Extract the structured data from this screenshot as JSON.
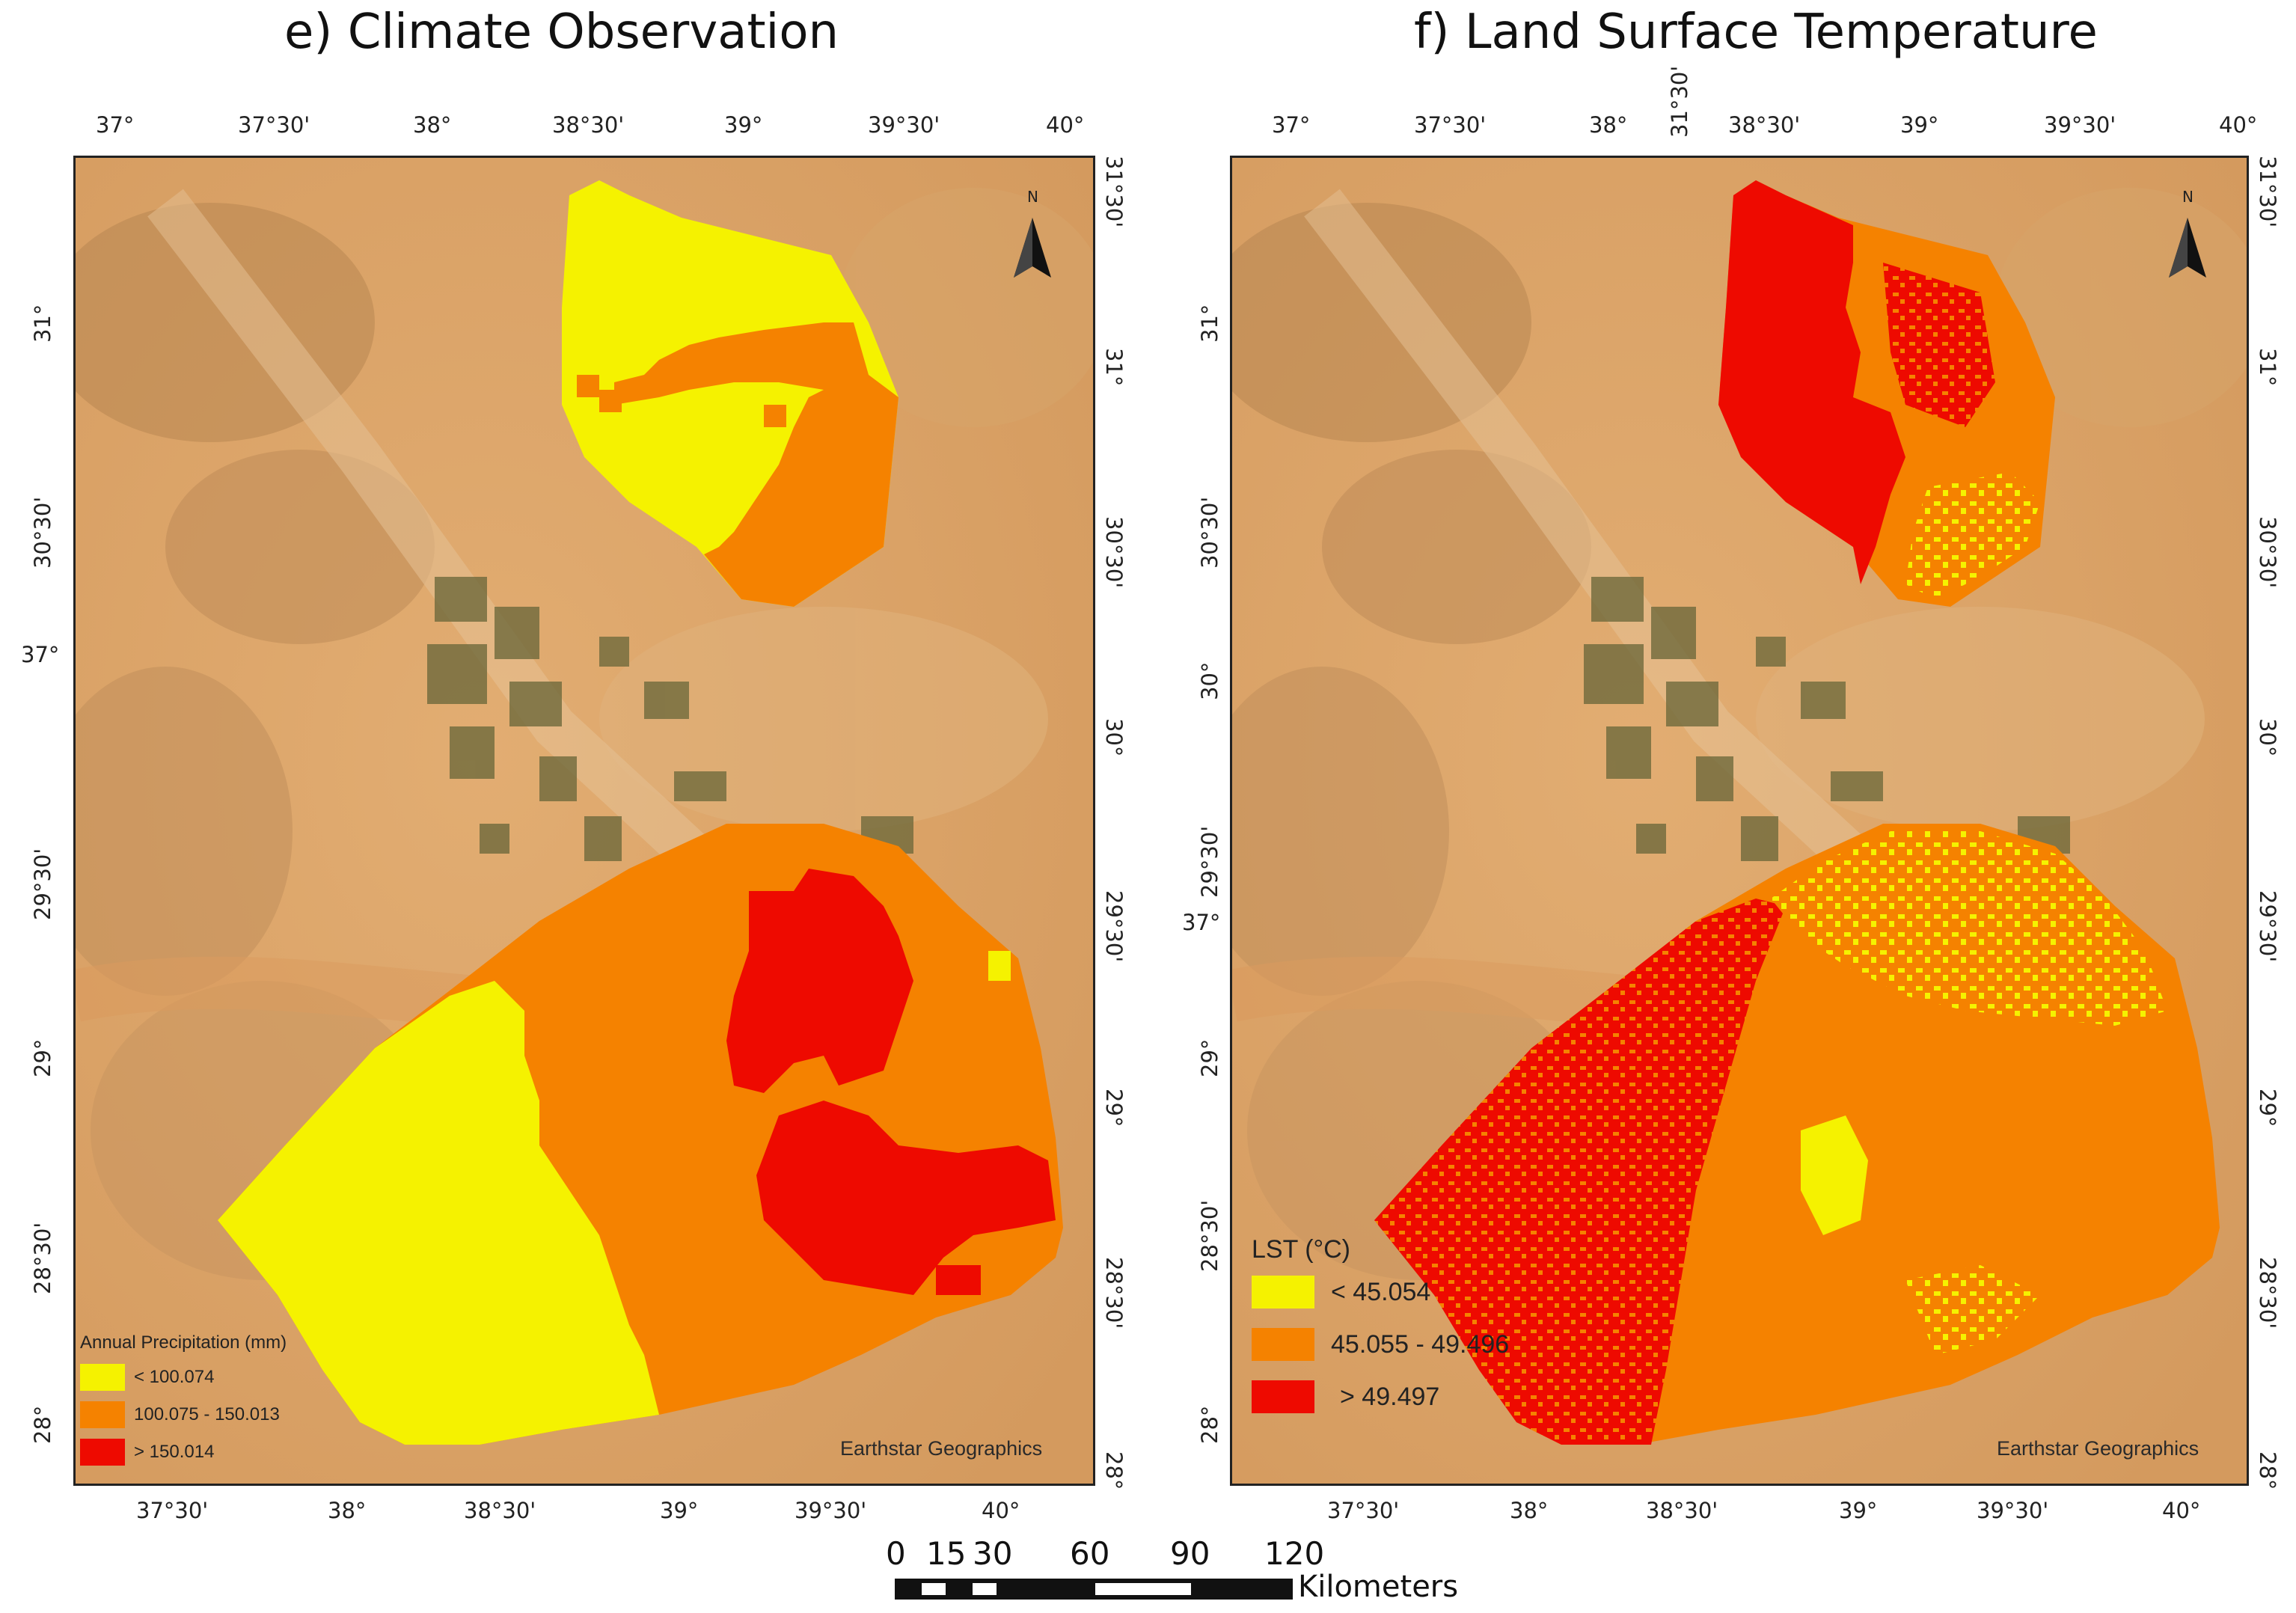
{
  "figure": {
    "panel_e": {
      "title": "e) Climate Observation",
      "top_ticks": [
        "37°",
        "37°30'",
        "38°",
        "38°30'",
        "39°",
        "39°30'",
        "40°"
      ],
      "bottom_ticks": [
        "37°30'",
        "38°",
        "38°30'",
        "39°",
        "39°30'",
        "40°"
      ],
      "left_ticks": [
        "31°",
        "30°30'",
        "37°",
        "29°30'",
        "29°",
        "28°30'",
        "28°"
      ],
      "right_ticks": [
        "31°30'",
        "31°",
        "30°30'",
        "30°",
        "29°30'",
        "29°",
        "28°30'",
        "28°"
      ],
      "legend": {
        "title": "Annual Precipitation (mm)",
        "items": [
          {
            "label": "< 100.074",
            "color": "#f5f200"
          },
          {
            "label": "100.075 - 150.013",
            "color": "#f58200"
          },
          {
            "label": "> 150.014",
            "color": "#ee0a00"
          }
        ]
      },
      "credit": "Earthstar Geographics",
      "north_label": "N"
    },
    "panel_f": {
      "title": "f) Land Surface Temperature",
      "top_ticks": [
        "37°",
        "37°30'",
        "38°",
        "31°30'",
        "38°30'",
        "39°",
        "39°30'",
        "40°"
      ],
      "bottom_ticks": [
        "37°30'",
        "38°",
        "38°30'",
        "39°",
        "39°30'",
        "40°"
      ],
      "left_ticks": [
        "31°",
        "30°30'",
        "30°",
        "29°30'",
        "37°",
        "29°",
        "28°30'",
        "28°"
      ],
      "right_ticks": [
        "31°30'",
        "31°",
        "30°30'",
        "30°",
        "29°30'",
        "29°",
        "28°30'",
        "28°"
      ],
      "legend": {
        "title": "LST (°C)",
        "items": [
          {
            "label": "< 45.054",
            "color": "#f5f200"
          },
          {
            "label": "45.055 - 49.496",
            "color": "#f58200"
          },
          {
            "label": "> 49.497",
            "color": "#ee0a00"
          }
        ]
      },
      "credit": "Earthstar Geographics",
      "north_label": "N"
    },
    "scale_bar": {
      "labels": [
        "0",
        "15",
        "30",
        "60",
        "90",
        "120"
      ],
      "units": "Kilometers"
    },
    "colors": {
      "desert_base": "#d9a066",
      "desert_light": "#e6b57d",
      "desert_dark": "#b9854f",
      "vegetation": "#6f6a3c",
      "yellow": "#f5f200",
      "orange": "#f58200",
      "red": "#ee0a00"
    }
  }
}
